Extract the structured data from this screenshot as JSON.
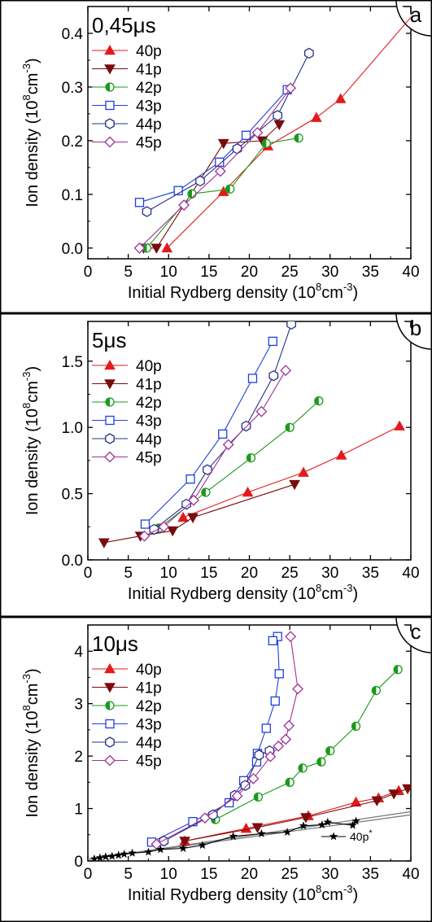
{
  "colors": {
    "40p": "#e31a1c",
    "41p": "#7a0c0c",
    "42p": "#1a9a1a",
    "43p": "#1f3fdc",
    "44p": "#25308a",
    "45p": "#a0309a",
    "40p_star": "#000000",
    "fit": "#808080"
  },
  "chart_data": [
    {
      "type": "line",
      "panel_letter": "a",
      "time_label": "0,45μs",
      "xlabel": "Initial Rydberg density (10",
      "xlabel_sup": "8",
      "xlabel_tail": "cm",
      "xlabel_sup2": "-3",
      "xlabel_end": ")",
      "ylabel": "Ion density (10",
      "ylabel_sup": "8",
      "ylabel_tail": "cm",
      "ylabel_sup2": "-3",
      "ylabel_end": ")",
      "xlim": [
        0,
        40
      ],
      "ylim": [
        -0.02,
        0.45
      ],
      "xticks": [
        0,
        5,
        10,
        15,
        20,
        25,
        30,
        35,
        40
      ],
      "yticks": [
        0.0,
        0.1,
        0.2,
        0.3,
        0.4
      ],
      "ytick_labels": [
        "0.0",
        "0.1",
        "0.2",
        "0.3",
        "0.4"
      ],
      "legend": [
        "40p",
        "41p",
        "42p",
        "43p",
        "44p",
        "45p"
      ],
      "series": [
        {
          "name": "40p",
          "marker": "triangle-up",
          "points": [
            [
              9.8,
              0.0
            ],
            [
              16.8,
              0.105
            ],
            [
              22.3,
              0.19
            ],
            [
              28.3,
              0.243
            ],
            [
              31.3,
              0.278
            ]
          ],
          "tail_to": [
            40,
            0.43
          ]
        },
        {
          "name": "41p",
          "marker": "triangle-down",
          "points": [
            [
              6.9,
              0.0
            ],
            [
              8.5,
              0.0
            ],
            [
              16.8,
              0.195
            ],
            [
              21.6,
              0.2
            ],
            [
              23.7,
              0.23
            ]
          ]
        },
        {
          "name": "42p",
          "marker": "half-circle",
          "points": [
            [
              7.3,
              0.0
            ],
            [
              12.9,
              0.101
            ],
            [
              17.6,
              0.11
            ],
            [
              22.1,
              0.195
            ],
            [
              26.1,
              0.205
            ]
          ]
        },
        {
          "name": "43p",
          "marker": "square",
          "points": [
            [
              6.4,
              0.085
            ],
            [
              11.2,
              0.107
            ],
            [
              16.3,
              0.16
            ],
            [
              19.6,
              0.21
            ],
            [
              24.7,
              0.295
            ]
          ]
        },
        {
          "name": "44p",
          "marker": "hexagon",
          "points": [
            [
              7.3,
              0.068
            ],
            [
              13.9,
              0.125
            ],
            [
              18.5,
              0.185
            ],
            [
              23.5,
              0.247
            ],
            [
              27.4,
              0.363
            ]
          ]
        },
        {
          "name": "45p",
          "marker": "diamond",
          "points": [
            [
              6.4,
              0.0
            ],
            [
              11.9,
              0.08
            ],
            [
              16.4,
              0.143
            ],
            [
              21.0,
              0.215
            ],
            [
              25.1,
              0.298
            ]
          ]
        }
      ]
    },
    {
      "type": "line",
      "panel_letter": "b",
      "time_label": "5μs",
      "xlabel": "Initial Rydberg density (10",
      "xlabel_sup": "8",
      "xlabel_tail": "cm",
      "xlabel_sup2": "-3",
      "xlabel_end": ")",
      "ylabel": "Ion density (10",
      "ylabel_sup": "8",
      "ylabel_tail": "cm",
      "ylabel_sup2": "-3",
      "ylabel_end": ")",
      "xlim": [
        0,
        40
      ],
      "ylim": [
        0.0,
        1.8
      ],
      "xticks": [
        0,
        5,
        10,
        15,
        20,
        25,
        30,
        35,
        40
      ],
      "yticks": [
        0.0,
        0.5,
        1.0,
        1.5
      ],
      "ytick_labels": [
        "0.0",
        "0.5",
        "1.0",
        "1.5"
      ],
      "legend": [
        "40p",
        "41p",
        "42p",
        "43p",
        "44p",
        "45p"
      ],
      "series": [
        {
          "name": "40p",
          "marker": "triangle-up",
          "points": [
            [
              11.8,
              0.32
            ],
            [
              19.8,
              0.51
            ],
            [
              26.7,
              0.66
            ],
            [
              31.4,
              0.79
            ],
            [
              38.6,
              1.01
            ]
          ]
        },
        {
          "name": "41p",
          "marker": "triangle-down",
          "points": [
            [
              2.0,
              0.13
            ],
            [
              6.5,
              0.18
            ],
            [
              10.5,
              0.22
            ],
            [
              13.0,
              0.32
            ],
            [
              25.6,
              0.57
            ]
          ]
        },
        {
          "name": "42p",
          "marker": "half-circle",
          "points": [
            [
              8.8,
              0.24
            ],
            [
              14.6,
              0.51
            ],
            [
              20.2,
              0.77
            ],
            [
              25.0,
              1.0
            ],
            [
              28.6,
              1.2
            ]
          ]
        },
        {
          "name": "43p",
          "marker": "square",
          "points": [
            [
              7.1,
              0.27
            ],
            [
              12.7,
              0.61
            ],
            [
              16.7,
              0.95
            ],
            [
              20.4,
              1.37
            ],
            [
              22.9,
              1.65
            ]
          ]
        },
        {
          "name": "44p",
          "marker": "hexagon",
          "points": [
            [
              8.2,
              0.23
            ],
            [
              12.2,
              0.42
            ],
            [
              14.8,
              0.68
            ],
            [
              19.6,
              1.01
            ],
            [
              23.0,
              1.39
            ],
            [
              25.2,
              1.78
            ]
          ]
        },
        {
          "name": "45p",
          "marker": "diamond",
          "points": [
            [
              7.0,
              0.18
            ],
            [
              9.4,
              0.25
            ],
            [
              13.1,
              0.45
            ],
            [
              17.4,
              0.87
            ],
            [
              21.5,
              1.12
            ],
            [
              24.5,
              1.43
            ]
          ]
        }
      ]
    },
    {
      "type": "line",
      "panel_letter": "c",
      "time_label": "10μs",
      "xlabel": "Initial Rydberg density (10",
      "xlabel_sup": "8",
      "xlabel_tail": "cm",
      "xlabel_sup2": "-3",
      "xlabel_end": ")",
      "ylabel": "Ion density (10",
      "ylabel_sup": "8",
      "ylabel_tail": "cm",
      "ylabel_sup2": "-3",
      "ylabel_end": ")",
      "xlim": [
        0,
        40
      ],
      "ylim": [
        0.0,
        4.5
      ],
      "xticks": [
        0,
        5,
        10,
        15,
        20,
        25,
        30,
        35,
        40
      ],
      "yticks": [
        0,
        1,
        2,
        3,
        4
      ],
      "ytick_labels": [
        "0",
        "1",
        "2",
        "3",
        "4"
      ],
      "legend": [
        "40p",
        "41p",
        "42p",
        "43p",
        "44p",
        "45p"
      ],
      "star_label": "40p",
      "star_sup": "*",
      "series": [
        {
          "name": "40p",
          "marker": "triangle-up",
          "points": [
            [
              12.0,
              0.38
            ],
            [
              19.6,
              0.62
            ],
            [
              27.3,
              0.86
            ],
            [
              33.2,
              1.12
            ],
            [
              36.0,
              1.2
            ],
            [
              38.5,
              1.34
            ]
          ]
        },
        {
          "name": "41p",
          "marker": "triangle-down",
          "points": [
            [
              12.0,
              0.38
            ],
            [
              21.0,
              0.64
            ],
            [
              27.0,
              0.83
            ],
            [
              35.8,
              1.15
            ],
            [
              37.9,
              1.28
            ],
            [
              39.6,
              1.38
            ]
          ]
        },
        {
          "name": "42p",
          "marker": "half-circle",
          "points": [
            [
              15.8,
              0.79
            ],
            [
              21.1,
              1.22
            ],
            [
              25.0,
              1.5
            ],
            [
              26.6,
              1.77
            ],
            [
              28.9,
              1.89
            ],
            [
              30.0,
              2.1
            ],
            [
              33.2,
              2.57
            ],
            [
              35.7,
              3.25
            ],
            [
              38.4,
              3.65
            ]
          ]
        },
        {
          "name": "43p",
          "marker": "square",
          "points": [
            [
              7.9,
              0.36
            ],
            [
              13.0,
              0.75
            ],
            [
              17.5,
              1.11
            ],
            [
              19.3,
              1.53
            ],
            [
              20.9,
              1.89
            ],
            [
              21.0,
              2.05
            ],
            [
              22.1,
              2.53
            ],
            [
              23.2,
              3.05
            ],
            [
              23.7,
              3.57
            ],
            [
              23.5,
              4.28
            ],
            [
              22.9,
              4.2
            ]
          ]
        },
        {
          "name": "44p",
          "marker": "hexagon",
          "points": [
            [
              9.4,
              0.38
            ],
            [
              15.5,
              0.88
            ],
            [
              18.2,
              1.25
            ],
            [
              19.5,
              1.44
            ],
            [
              21.2,
              2.02
            ],
            [
              22.5,
              2.1
            ]
          ]
        },
        {
          "name": "45p",
          "marker": "diamond",
          "points": [
            [
              8.5,
              0.32
            ],
            [
              14.5,
              0.82
            ],
            [
              18.5,
              1.24
            ],
            [
              20.5,
              1.57
            ],
            [
              22.6,
              1.99
            ],
            [
              23.6,
              2.19
            ],
            [
              24.5,
              2.32
            ],
            [
              24.9,
              2.58
            ],
            [
              26.0,
              3.28
            ],
            [
              25.1,
              4.28
            ]
          ]
        },
        {
          "name": "40p*",
          "marker": "star",
          "points": [
            [
              0.8,
              0.04
            ],
            [
              1.5,
              0.06
            ],
            [
              2.2,
              0.08
            ],
            [
              3.0,
              0.09
            ],
            [
              3.8,
              0.11
            ],
            [
              4.5,
              0.13
            ],
            [
              5.5,
              0.15
            ],
            [
              7.5,
              0.17
            ],
            [
              9.0,
              0.22
            ],
            [
              11.8,
              0.24
            ],
            [
              14.2,
              0.3
            ],
            [
              18.0,
              0.47
            ],
            [
              21.5,
              0.52
            ],
            [
              24.7,
              0.55
            ],
            [
              26.7,
              0.67
            ],
            [
              29.0,
              0.69
            ],
            [
              29.7,
              0.74
            ],
            [
              32.8,
              0.68
            ],
            [
              33.2,
              0.76
            ]
          ]
        }
      ],
      "fit_lines": [
        {
          "from": [
            0,
            0.03
          ],
          "to": [
            40,
            0.94
          ]
        },
        {
          "from": [
            0,
            0.03
          ],
          "to": [
            40,
            0.88
          ]
        }
      ]
    }
  ]
}
